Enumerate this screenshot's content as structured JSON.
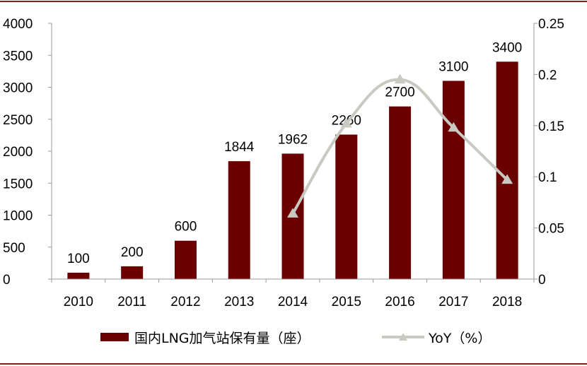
{
  "chart_data": {
    "type": "bar",
    "categories": [
      "2010",
      "2011",
      "2012",
      "2013",
      "2014",
      "2015",
      "2016",
      "2017",
      "2018"
    ],
    "series": [
      {
        "name": "国内LNG加气站保有量（座）",
        "type": "bar",
        "axis": "left",
        "color": "#6b0000",
        "values": [
          100,
          200,
          600,
          1844,
          1962,
          2260,
          2700,
          3100,
          3400
        ],
        "labels": [
          "100",
          "200",
          "600",
          "1844",
          "1962",
          "2260",
          "2700",
          "3100",
          "3400"
        ]
      },
      {
        "name": "YoY（%）",
        "type": "line",
        "axis": "right",
        "color": "#c9c9c2",
        "marker": "triangle",
        "values": [
          null,
          null,
          null,
          null,
          0.064,
          0.152,
          0.195,
          0.148,
          0.097
        ]
      }
    ],
    "y_left": {
      "min": 0,
      "max": 4000,
      "ticks": [
        "0",
        "500",
        "1000",
        "1500",
        "2000",
        "2500",
        "3000",
        "3500",
        "4000"
      ]
    },
    "y_right": {
      "min": 0,
      "max": 0.25,
      "ticks": [
        "0",
        "0.05",
        "0.1",
        "0.15",
        "0.2",
        "0.25"
      ]
    },
    "grid": false,
    "legend_position": "bottom"
  },
  "colors": {
    "bar": "#6b0000",
    "line": "#c9c9c2",
    "frame": "#8b1a1a",
    "axis": "#9a9a9a"
  }
}
